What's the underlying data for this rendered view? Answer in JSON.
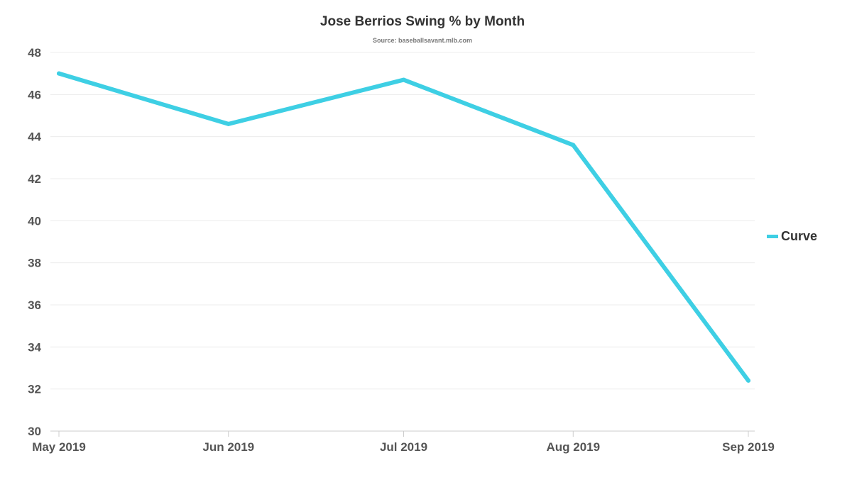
{
  "chart_data": {
    "type": "line",
    "title": "Jose Berrios Swing % by Month",
    "subtitle": "Source: baseballsavant.mlb.com",
    "xlabel": "",
    "ylabel": "",
    "categories": [
      "May 2019",
      "Jun 2019",
      "Jul 2019",
      "Aug 2019",
      "Sep 2019"
    ],
    "x_days": [
      0,
      30,
      61,
      91,
      122
    ],
    "series": [
      {
        "name": "Curve",
        "color": "#3ecfe4",
        "values": [
          47.0,
          44.6,
          46.7,
          43.6,
          32.4
        ]
      }
    ],
    "ylim": [
      30,
      48
    ],
    "yticks": [
      30,
      32,
      34,
      36,
      38,
      40,
      42,
      44,
      46,
      48
    ],
    "grid": true,
    "legend_position": "right"
  }
}
